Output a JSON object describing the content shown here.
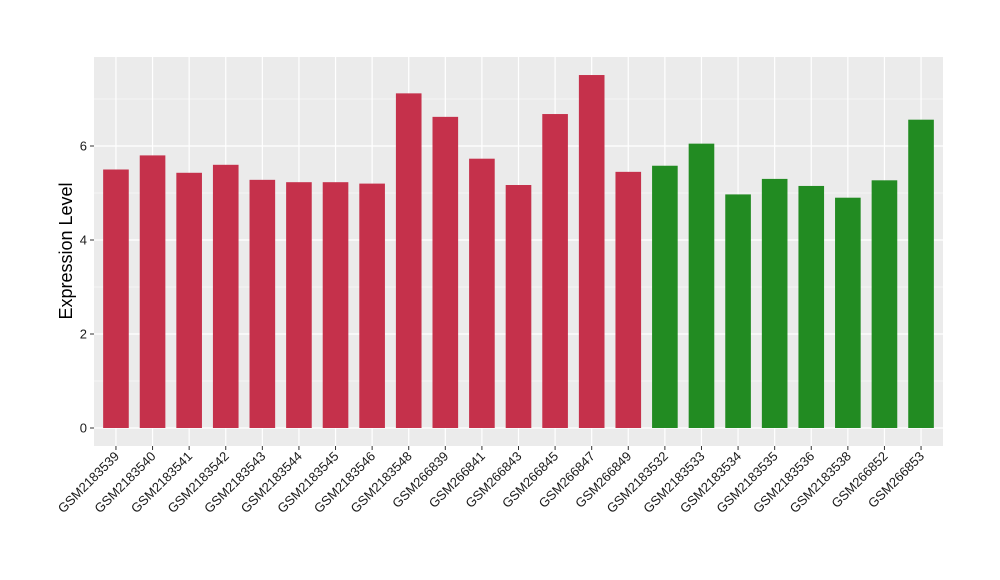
{
  "chart_data": {
    "type": "bar",
    "title": "",
    "xlabel": "",
    "ylabel": "Expression Level",
    "ylim": [
      0,
      7.85
    ],
    "yticks": [
      0,
      2,
      4,
      6
    ],
    "grid": true,
    "categories": [
      "GSM2183539",
      "GSM2183540",
      "GSM2183541",
      "GSM2183542",
      "GSM2183543",
      "GSM2183544",
      "GSM2183545",
      "GSM2183546",
      "GSM2183548",
      "GSM266839",
      "GSM266841",
      "GSM266843",
      "GSM266845",
      "GSM266847",
      "GSM266849",
      "GSM2183532",
      "GSM2183533",
      "GSM2183534",
      "GSM2183535",
      "GSM2183536",
      "GSM2183538",
      "GSM266852",
      "GSM266853"
    ],
    "values": [
      5.5,
      5.8,
      5.43,
      5.6,
      5.28,
      5.23,
      5.23,
      5.2,
      7.12,
      6.62,
      5.73,
      5.17,
      6.68,
      7.51,
      5.45,
      5.58,
      6.05,
      4.97,
      5.3,
      5.15,
      4.9,
      5.27,
      6.56
    ],
    "group_colors": [
      "#C5314B",
      "#C5314B",
      "#C5314B",
      "#C5314B",
      "#C5314B",
      "#C5314B",
      "#C5314B",
      "#C5314B",
      "#C5314B",
      "#C5314B",
      "#C5314B",
      "#C5314B",
      "#C5314B",
      "#C5314B",
      "#C5314B",
      "#228B22",
      "#228B22",
      "#228B22",
      "#228B22",
      "#228B22",
      "#228B22",
      "#228B22",
      "#228B22"
    ],
    "panel_background": "#EBEBEB",
    "gridline_color": "#FFFFFF"
  }
}
